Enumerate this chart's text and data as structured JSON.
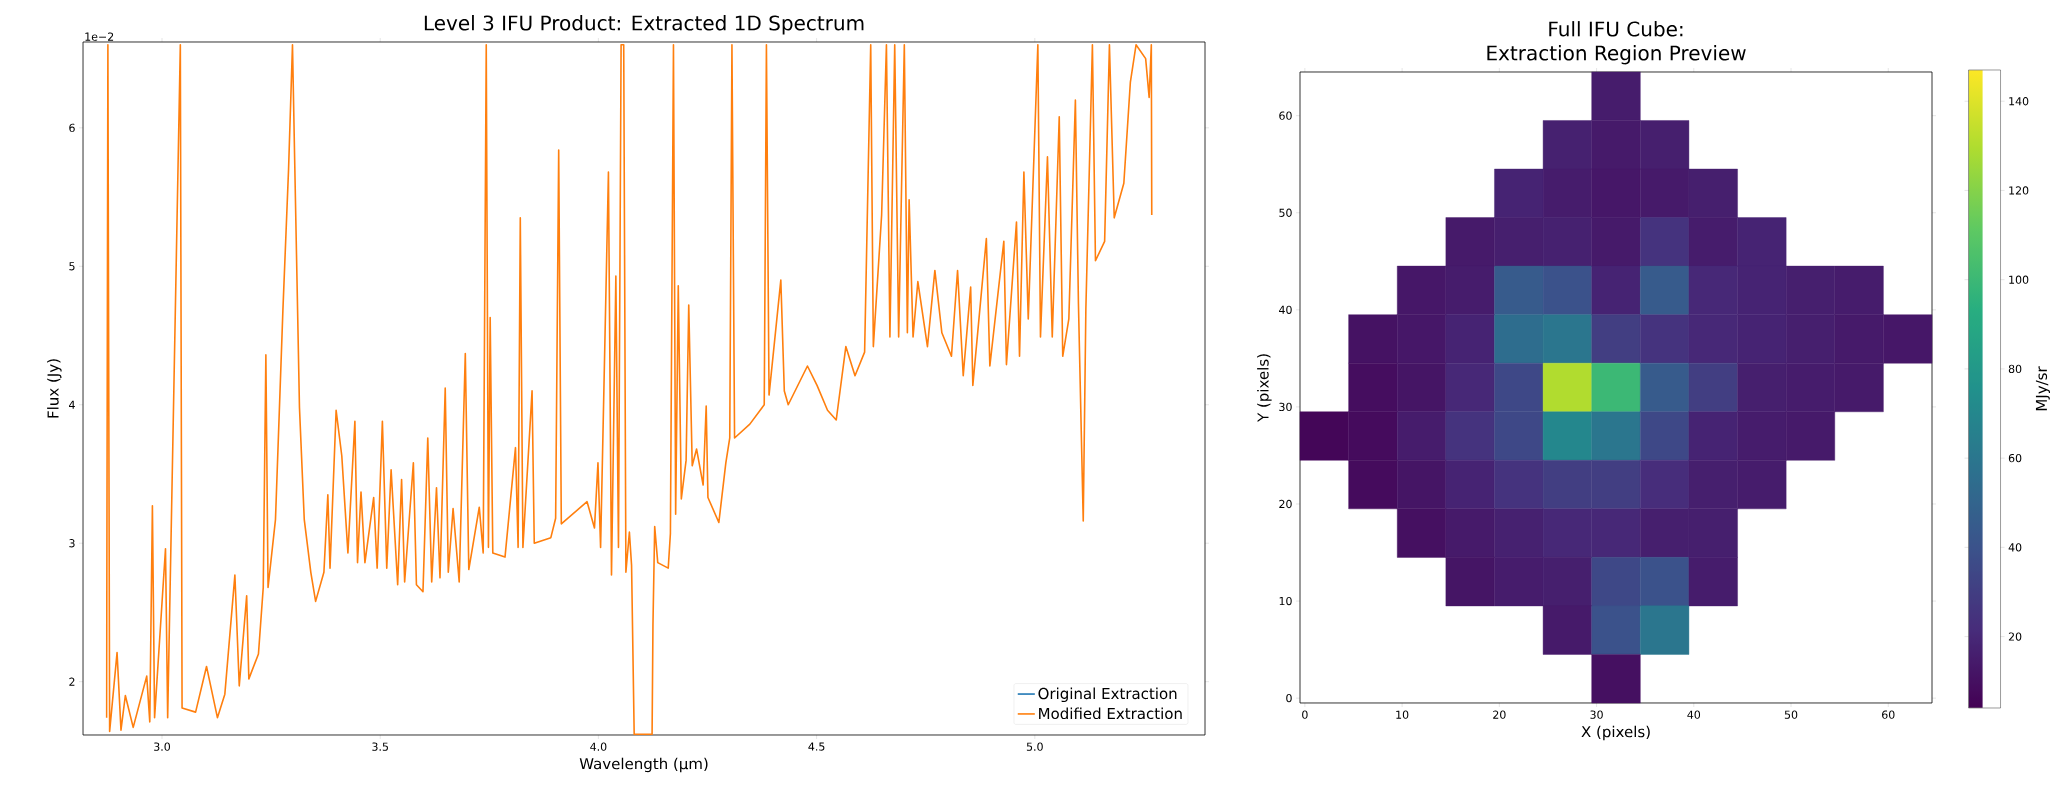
{
  "chart_data": [
    {
      "type": "line",
      "title": "Level 3 IFU Product: Extracted 1D Spectrum",
      "xlabel": "Wavelength (µm)",
      "ylabel": "Flux (Jy)",
      "annotations": [
        "1e−2"
      ],
      "xlim": [
        2.819,
        5.39
      ],
      "ylim": [
        1.615,
        6.62
      ],
      "xticks": [
        {
          "value": 3,
          "label": "3.0"
        },
        3.5,
        {
          "value": 4,
          "label": "4.0"
        },
        4.5,
        {
          "value": 5,
          "label": "5.0"
        }
      ],
      "yticks": [
        2,
        3,
        4,
        5,
        6
      ],
      "legend": "bottom right",
      "line_style": "solid",
      "x": [
        2.873,
        2.876,
        2.88,
        2.897,
        2.906,
        2.916,
        2.934,
        2.965,
        2.972,
        2.978,
        2.983,
        3.008,
        3.013,
        3.042,
        3.046,
        3.077,
        3.102,
        3.127,
        3.144,
        3.167,
        3.177,
        3.194,
        3.199,
        3.221,
        3.232,
        3.238,
        3.243,
        3.26,
        3.277,
        3.29,
        3.299,
        3.304,
        3.315,
        3.326,
        3.341,
        3.352,
        3.371,
        3.38,
        3.385,
        3.399,
        3.412,
        3.426,
        3.442,
        3.448,
        3.456,
        3.465,
        3.485,
        3.493,
        3.505,
        3.515,
        3.525,
        3.54,
        3.549,
        3.556,
        3.576,
        3.583,
        3.598,
        3.609,
        3.618,
        3.629,
        3.637,
        3.649,
        3.656,
        3.667,
        3.681,
        3.695,
        3.703,
        3.727,
        3.736,
        3.743,
        3.748,
        3.752,
        3.758,
        3.786,
        3.81,
        3.816,
        3.821,
        3.827,
        3.848,
        3.853,
        3.891,
        3.902,
        3.909,
        3.915,
        3.974,
        3.991,
        3.999,
        4.005,
        4.023,
        4.03,
        4.04,
        4.046,
        4.052,
        4.058,
        4.063,
        4.071,
        4.076,
        4.082,
        4.123,
        4.125,
        4.129,
        4.136,
        4.16,
        4.165,
        4.172,
        4.177,
        4.183,
        4.19,
        4.201,
        4.207,
        4.215,
        4.225,
        4.24,
        4.247,
        4.251,
        4.276,
        4.292,
        4.301,
        4.306,
        4.312,
        4.347,
        4.38,
        4.385,
        4.391,
        4.418,
        4.426,
        4.435,
        4.479,
        4.501,
        4.525,
        4.545,
        4.567,
        4.588,
        4.61,
        4.624,
        4.63,
        4.649,
        4.66,
        4.668,
        4.679,
        4.688,
        4.701,
        4.708,
        4.712,
        4.721,
        4.732,
        4.754,
        4.771,
        4.787,
        4.809,
        4.823,
        4.836,
        4.853,
        4.858,
        4.889,
        4.897,
        4.929,
        4.935,
        4.958,
        4.965,
        4.975,
        4.985,
        5.007,
        5.013,
        5.029,
        5.04,
        5.056,
        5.064,
        5.078,
        5.093,
        5.1,
        5.111,
        5.117,
        5.132,
        5.139,
        5.16,
        5.171,
        5.182,
        5.204,
        5.219,
        5.232,
        5.254,
        5.262,
        5.267,
        5.268
      ],
      "series": [
        {
          "name": "Original Extraction",
          "color": "#1f77b4",
          "values": [
            null,
            null,
            null,
            null,
            null,
            null,
            null,
            null,
            null,
            null,
            null,
            null,
            null,
            null,
            null,
            null,
            null,
            null,
            null,
            null,
            null,
            null,
            null,
            null,
            null,
            null,
            null,
            null,
            null,
            null,
            null,
            null,
            null,
            null,
            null,
            null,
            null,
            null,
            null,
            null,
            null,
            null,
            null,
            null,
            null,
            null,
            null,
            null,
            null,
            null,
            null,
            null,
            null,
            null,
            null,
            null,
            null,
            null,
            null,
            null,
            null,
            null,
            null,
            null,
            null,
            null,
            null,
            null,
            null,
            null,
            null,
            null,
            null,
            null,
            null,
            null,
            null,
            null,
            null,
            null,
            null,
            null,
            null,
            null,
            null,
            null,
            null,
            null,
            null,
            null,
            null,
            null,
            null,
            null,
            null,
            null,
            null,
            null,
            null,
            null,
            null,
            null,
            null,
            null,
            null,
            null,
            null,
            null,
            null,
            null,
            null,
            null,
            null,
            null,
            null,
            null,
            null,
            null,
            null,
            null,
            null,
            null,
            null,
            null,
            null,
            null,
            null,
            null,
            null,
            null,
            null,
            null,
            null,
            null,
            null,
            null,
            null,
            null,
            null,
            null,
            null,
            null,
            null,
            null,
            null,
            null,
            null,
            null,
            null,
            null,
            null,
            null,
            null,
            null,
            null,
            null,
            null,
            null,
            null,
            null,
            null,
            null,
            null,
            null,
            null,
            null,
            null,
            null,
            null,
            null,
            null,
            null,
            null,
            null,
            null,
            null,
            null,
            null,
            null,
            null,
            null,
            null,
            null,
            null,
            null
          ]
        },
        {
          "name": "Modified Extraction",
          "color": "#ff7f0e",
          "values": [
            1.74,
            6.6,
            1.64,
            2.21,
            1.65,
            1.9,
            1.67,
            2.04,
            1.71,
            3.27,
            1.74,
            2.96,
            1.74,
            6.6,
            1.81,
            1.78,
            2.11,
            1.74,
            1.91,
            2.77,
            1.97,
            2.62,
            2.02,
            2.2,
            2.68,
            4.36,
            2.68,
            3.17,
            4.68,
            5.7,
            6.6,
            5.77,
            3.98,
            3.17,
            2.79,
            2.58,
            2.79,
            3.35,
            2.82,
            3.96,
            3.63,
            2.93,
            3.88,
            2.86,
            3.37,
            2.86,
            3.33,
            2.82,
            3.88,
            2.82,
            3.53,
            2.7,
            3.46,
            2.72,
            3.58,
            2.7,
            2.65,
            3.76,
            2.72,
            3.4,
            2.75,
            4.12,
            2.79,
            3.25,
            2.72,
            4.37,
            2.81,
            3.26,
            2.93,
            6.6,
            2.97,
            4.63,
            2.93,
            2.9,
            3.69,
            2.97,
            5.35,
            2.97,
            4.1,
            3.0,
            3.04,
            3.18,
            5.84,
            3.14,
            3.3,
            3.11,
            3.58,
            2.97,
            5.68,
            2.77,
            4.93,
            2.97,
            6.6,
            6.6,
            2.79,
            3.08,
            2.84,
            1.62,
            1.62,
            2.41,
            3.12,
            2.86,
            2.82,
            3.07,
            6.6,
            3.21,
            4.86,
            3.32,
            3.6,
            4.72,
            3.56,
            3.68,
            3.42,
            3.99,
            3.33,
            3.15,
            3.58,
            3.76,
            6.6,
            3.76,
            3.86,
            4.0,
            6.6,
            4.07,
            4.9,
            4.1,
            4.0,
            4.28,
            4.14,
            3.96,
            3.89,
            4.42,
            4.21,
            4.38,
            6.6,
            4.42,
            5.37,
            6.6,
            4.49,
            6.6,
            4.49,
            6.6,
            4.52,
            5.48,
            4.49,
            4.89,
            4.42,
            4.97,
            4.52,
            4.35,
            4.97,
            4.21,
            4.85,
            4.14,
            5.2,
            4.28,
            5.18,
            4.29,
            5.32,
            4.35,
            5.68,
            4.62,
            6.6,
            4.49,
            5.79,
            4.49,
            6.08,
            4.35,
            4.62,
            6.2,
            4.73,
            3.16,
            4.69,
            6.6,
            5.04,
            5.18,
            6.6,
            5.35,
            5.6,
            6.33,
            6.6,
            6.5,
            6.22,
            6.6,
            5.37
          ]
        }
      ]
    },
    {
      "type": "heatmap",
      "title": "Full IFU Cube:",
      "subtitle": "Extraction Region Preview",
      "xlabel": "X (pixels)",
      "ylabel": "Y (pixels)",
      "clabel": "MJy/sr",
      "xlim": [
        -0.5,
        64.5
      ],
      "ylim": [
        -0.5,
        64.5
      ],
      "xticks": [
        0,
        10,
        20,
        30,
        40,
        50,
        60
      ],
      "yticks": [
        0,
        10,
        20,
        30,
        40,
        50,
        60
      ],
      "clim": [
        4,
        147
      ],
      "cticks": [
        20,
        40,
        60,
        80,
        100,
        120,
        140
      ],
      "x": [
        2,
        7,
        12,
        17,
        22,
        27,
        32,
        37,
        42,
        47,
        52,
        57,
        62
      ],
      "y": [
        62,
        57,
        52,
        47,
        42,
        37,
        32,
        27,
        22,
        17,
        12,
        7,
        2
      ],
      "cells": [
        [
          null,
          null,
          null,
          null,
          null,
          null,
          15,
          null,
          null,
          null,
          null,
          null,
          null
        ],
        [
          null,
          null,
          null,
          null,
          null,
          17,
          14,
          16,
          null,
          null,
          null,
          null,
          null
        ],
        [
          null,
          null,
          null,
          null,
          18,
          15,
          13,
          14,
          16,
          null,
          null,
          null,
          null
        ],
        [
          null,
          null,
          null,
          14,
          16,
          17,
          14,
          25,
          15,
          18,
          null,
          null,
          null
        ],
        [
          null,
          null,
          13,
          15,
          45,
          40,
          18,
          45,
          20,
          18,
          16,
          15,
          null
        ],
        [
          null,
          11,
          13,
          18,
          55,
          60,
          30,
          25,
          20,
          18,
          16,
          14,
          13
        ],
        [
          null,
          9,
          12,
          20,
          35,
          130,
          100,
          45,
          30,
          16,
          15,
          14,
          null
        ],
        [
          6,
          8,
          15,
          25,
          35,
          70,
          60,
          35,
          18,
          15,
          14,
          null,
          null
        ],
        [
          null,
          8,
          12,
          18,
          25,
          30,
          30,
          22,
          16,
          15,
          null,
          null,
          null
        ],
        [
          null,
          null,
          10,
          14,
          17,
          20,
          20,
          16,
          16,
          null,
          null,
          null,
          null
        ],
        [
          null,
          null,
          null,
          12,
          15,
          16,
          35,
          40,
          15,
          null,
          null,
          null,
          null
        ],
        [
          null,
          null,
          null,
          null,
          null,
          14,
          40,
          60,
          null,
          null,
          null,
          null,
          null
        ],
        [
          null,
          null,
          null,
          null,
          null,
          null,
          10,
          null,
          null,
          null,
          null,
          null,
          null
        ]
      ]
    }
  ]
}
